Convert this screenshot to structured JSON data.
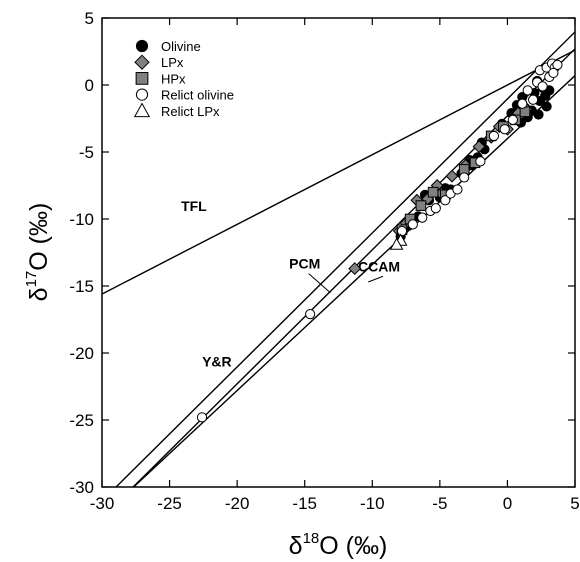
{
  "chart_data": {
    "type": "scatter",
    "title": "",
    "xlabel": {
      "prefix": "δ",
      "sup": "18",
      "suffix": "O (‰)"
    },
    "ylabel": {
      "prefix": "δ",
      "sup": "17",
      "suffix": "O (‰)"
    },
    "xlim": [
      -30,
      5
    ],
    "ylim": [
      -30,
      5
    ],
    "xticks": [
      -30,
      -25,
      -20,
      -15,
      -10,
      -5,
      0,
      5
    ],
    "yticks": [
      -30,
      -25,
      -20,
      -15,
      -10,
      -5,
      0,
      5
    ],
    "grid": false,
    "legend_position": "top-left",
    "reference_lines": [
      {
        "name": "TFL",
        "slope": 0.52,
        "intercept": 0.0,
        "label_at": [
          -23.2,
          -9.4
        ]
      },
      {
        "name": "PCM",
        "slope": 1.0,
        "intercept": -2.3,
        "label_at": [
          -15.0,
          -13.7
        ],
        "leader_to": [
          -13.1,
          -15.5
        ]
      },
      {
        "name": "CCAM",
        "slope": 0.94,
        "intercept": -4.0,
        "label_at": [
          -9.5,
          -13.9
        ],
        "leader_to": [
          -10.3,
          -14.7
        ]
      },
      {
        "name": "Y&R",
        "slope": 1.0,
        "intercept": -1.04,
        "label_at": [
          -21.5,
          -21.0
        ]
      }
    ],
    "series": [
      {
        "name": "Olivine",
        "marker": "circle",
        "fill": "#000000",
        "points": [
          [
            -7.9,
            -11.3
          ],
          [
            -7.3,
            -10.5
          ],
          [
            -6.6,
            -9.8
          ],
          [
            -6.1,
            -8.2
          ],
          [
            -5.8,
            -8.6
          ],
          [
            -5.3,
            -7.9
          ],
          [
            -5.0,
            -8.4
          ],
          [
            -4.6,
            -7.7
          ],
          [
            -4.2,
            -7.8
          ],
          [
            -3.1,
            -6.2
          ],
          [
            -3.4,
            -6.6
          ],
          [
            -2.8,
            -5.6
          ],
          [
            -2.6,
            -6.0
          ],
          [
            -2.2,
            -5.4
          ],
          [
            -1.9,
            -4.3
          ],
          [
            -1.7,
            -4.8
          ],
          [
            -0.4,
            -2.9
          ],
          [
            0.3,
            -2.1
          ],
          [
            0.7,
            -1.5
          ],
          [
            1.0,
            -2.8
          ],
          [
            1.3,
            -1.7
          ],
          [
            1.5,
            -2.4
          ],
          [
            1.8,
            -1.9
          ],
          [
            2.0,
            -0.6
          ],
          [
            2.2,
            0.3
          ],
          [
            2.4,
            -1.2
          ],
          [
            2.6,
            -0.2
          ],
          [
            2.8,
            -0.8
          ],
          [
            2.9,
            -1.6
          ],
          [
            3.1,
            -0.4
          ],
          [
            2.3,
            -2.2
          ],
          [
            1.1,
            -0.9
          ]
        ]
      },
      {
        "name": "LPx",
        "marker": "diamond",
        "fill": "#808080",
        "points": [
          [
            -11.3,
            -13.7
          ],
          [
            -8.0,
            -10.9
          ],
          [
            -7.5,
            -10.3
          ],
          [
            -6.7,
            -8.6
          ],
          [
            -5.9,
            -8.5
          ],
          [
            -5.2,
            -7.5
          ],
          [
            -4.9,
            -8.1
          ],
          [
            -4.1,
            -6.8
          ],
          [
            -3.1,
            -6.0
          ],
          [
            -2.1,
            -4.6
          ],
          [
            -1.2,
            -3.9
          ],
          [
            -0.6,
            -3.1
          ],
          [
            0.0,
            -3.3
          ],
          [
            0.8,
            -2.1
          ],
          [
            1.4,
            -1.8
          ]
        ]
      },
      {
        "name": "HPx",
        "marker": "square",
        "fill": "#808080",
        "points": [
          [
            -7.8,
            -10.8
          ],
          [
            -7.2,
            -10.0
          ],
          [
            -6.4,
            -9.0
          ],
          [
            -5.5,
            -8.0
          ],
          [
            -4.6,
            -8.2
          ],
          [
            -3.2,
            -6.3
          ],
          [
            -2.4,
            -5.8
          ],
          [
            -1.2,
            -3.8
          ],
          [
            -0.3,
            -3.1
          ],
          [
            0.6,
            -2.6
          ],
          [
            1.3,
            -2.0
          ]
        ]
      },
      {
        "name": "Relict olivine",
        "marker": "circle",
        "fill": "#ffffff",
        "points": [
          [
            -22.6,
            -24.8
          ],
          [
            -14.6,
            -17.1
          ],
          [
            -7.8,
            -10.9
          ],
          [
            -7.0,
            -10.4
          ],
          [
            -6.3,
            -9.9
          ],
          [
            -5.7,
            -9.4
          ],
          [
            -5.3,
            -9.2
          ],
          [
            -4.6,
            -8.6
          ],
          [
            -4.2,
            -8.1
          ],
          [
            -3.7,
            -7.8
          ],
          [
            -3.2,
            -6.9
          ],
          [
            -2.0,
            -5.7
          ],
          [
            -1.0,
            -3.8
          ],
          [
            -0.2,
            -3.3
          ],
          [
            0.4,
            -2.6
          ],
          [
            1.1,
            -1.4
          ],
          [
            1.5,
            -0.4
          ],
          [
            1.9,
            -1.1
          ],
          [
            2.2,
            0.2
          ],
          [
            2.4,
            1.1
          ],
          [
            2.6,
            -0.1
          ],
          [
            2.9,
            1.3
          ],
          [
            3.1,
            0.6
          ],
          [
            3.3,
            1.6
          ],
          [
            3.5,
            1.3
          ],
          [
            3.7,
            1.5
          ],
          [
            3.4,
            0.9
          ]
        ]
      },
      {
        "name": "Relict LPx",
        "marker": "triangle",
        "fill": "#ffffff",
        "points": [
          [
            -7.9,
            -11.6
          ],
          [
            -8.2,
            -11.9
          ]
        ]
      }
    ]
  }
}
